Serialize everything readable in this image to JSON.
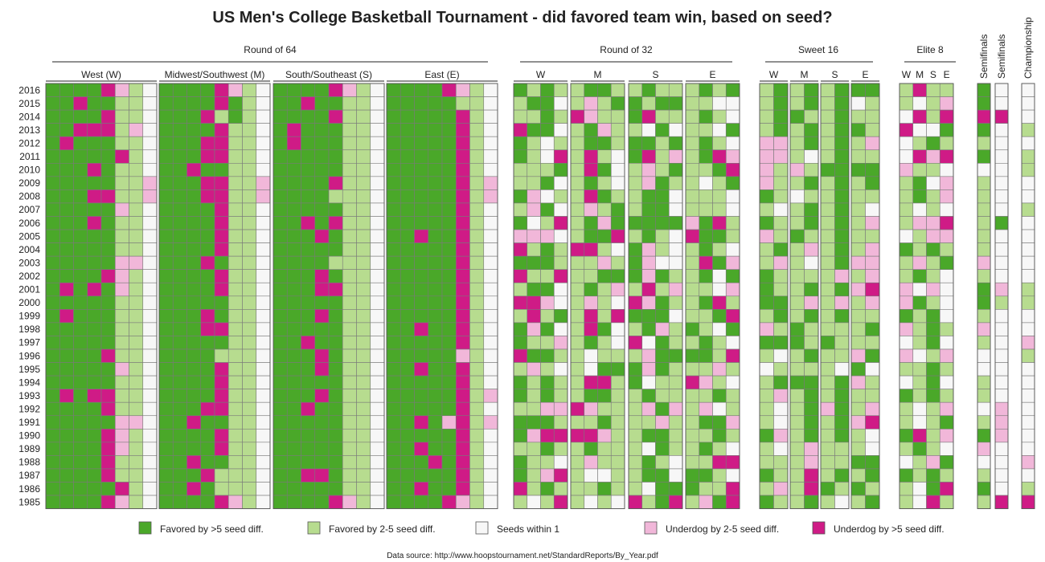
{
  "chart_data": {
    "type": "heatmap",
    "title": "US Men's College Basketball Tournament - did favored team win, based on seed?",
    "source": "Data source: http://www.hoopstournament.net/StandardReports/By_Year.pdf",
    "years": [
      "2016",
      "2015",
      "2014",
      "2013",
      "2012",
      "2011",
      "2010",
      "2009",
      "2008",
      "2007",
      "2006",
      "2005",
      "2004",
      "2003",
      "2002",
      "2001",
      "2000",
      "1999",
      "1998",
      "1997",
      "1996",
      "1995",
      "1994",
      "1993",
      "1992",
      "1991",
      "1990",
      "1989",
      "1988",
      "1987",
      "1986",
      "1985"
    ],
    "rounds": [
      {
        "name": "Round of 64",
        "regions": [
          "West (W)",
          "Midwest/Southwest (M)",
          "South/Southeast (S)",
          "East (E)"
        ]
      },
      {
        "name": "Round of 32",
        "regions": [
          "W",
          "M",
          "S",
          "E"
        ]
      },
      {
        "name": "Sweet 16",
        "regions": [
          "W",
          "M",
          "S",
          "E"
        ]
      },
      {
        "name": "Elite 8",
        "regions": [
          "W",
          "M",
          "S",
          "E"
        ]
      },
      {
        "name": "Semifinals",
        "regions": []
      },
      {
        "name": "Semifinals",
        "regions": []
      },
      {
        "name": "Championship",
        "regions": []
      }
    ],
    "categories": [
      {
        "code": 0,
        "label": "Favored by >5 seed diff.",
        "color": "#4aa829"
      },
      {
        "code": 1,
        "label": "Favored by 2-5 seed diff.",
        "color": "#b7dc8f"
      },
      {
        "code": 2,
        "label": "Seeds within 1",
        "color": "#f7f7f7"
      },
      {
        "code": 3,
        "label": "Underdog by 2-5 seed diff.",
        "color": "#f1b7d9"
      },
      {
        "code": 4,
        "label": "Underdog by >5 seed diff.",
        "color": "#cf1b86"
      }
    ],
    "note": "Cell codes estimated from the image. Each string = one year (2016 first); one digit per game column in display order: R64 W(8),M(8),S(8),E(8) | R32 W(4),M(4),S(4),E(4) | S16 W(2),M(2),S(2),E(2) | E8 W,M,S,E | Semifinal, Semifinal | Championship.",
    "grid": [
      "00004312000043120000431200004312|0101100110111010|10101000|1411|02|2",
      "00400112000040120040011200000112|1002131001001122|10101021|1213|02|2",
      "00004112000410120000411200000412|1101431104111012|10011011|2414|44|2",
      "00444132000041120400011200000412|4002103112021120|10101001|4220|02|1",
      "04000112000441120400011200000412|0121100100101012|33101013|2101|12|2",
      "00000412000441120000011200000412|0124141204131043|33121011|2434|02|1",
      "00040112004001120000011200000412|1110140213101104|31310000|3112|22|1",
      "00000113000441130000411200000413|1102101213011210|31101010|1023|12|2",
      "00044113000441130000111200000413|0321140110021112|01211011|1013|12|2",
      "00000312000041120000011200000412|1302131010021112|12101012|1212|12|1",
      "00040112000041120040411200000412|0214103000003041|01101013|1334|10|2",
      "00000112000041120004011200400412|3332100410124001|31011011|2133|12|2",
      "00000112000041120000011200000412|4101441203121012|10131013|0101|12|2",
      "00000332000401120000111200000412|0001113103221403|13121033|1310|32|2",
      "00004312000041120004011200000412|4114110003011020|01111313|1012|12|2",
      "04040312000041120004411200000412|1002101314131123|01101034|3232|03|1",
      "00000112000001120000011200000412|4432131243011041|00131313|3012|01|1",
      "04000112000401120004011200000412|1410141400021104|10101011|0102|12|2",
      "00000112000441120000011200400412|0302140210310120|31011110|3101|32|2",
      "00000112000001120040011200000412|0113101242011012|00010111|2102|12|3",
      "00004112000011120004011200000312|4001121113000014|12101130|3213|22|1",
      "00000312000041120004011200400412|1312120003011131|21111202|1101|22|2",
      "00000112000041120000011200000412|0101144102114312|10001031|2102|12|2",
      "04044112000041120004011200000413|0101100110111101|13101011|0101|12|2",
      "00004112000441120040011200000412|1133431113031321|12103013|1213|23|2",
      "00000332004001120000011200403413|0001110111311003|12101034|1210|13|2",
      "00004312000041120000011200000412|0344443110011101|03101012|0413|03|2",
      "00004312000041120000011200400412|1101101112011012|12131112|1012|32|2",
      "00004112004001120000011200040412|0112131110121144|11131100|2130|22|3",
      "00004112000411120044011200000412|0134122110020012|01141010|0101|12|2",
      "00000412004011120000011200400412|4101110112000114|13140101|1204|02|1",
      "00004312000043120000431200004312|1214121241041304|01101210|1241|14|4"
    ]
  },
  "legend_title": "",
  "labels": {
    "title": "US Men's College Basketball Tournament - did favored team win, based on seed?",
    "source": "Data source: http://www.hoopstournament.net/StandardReports/By_Year.pdf"
  }
}
